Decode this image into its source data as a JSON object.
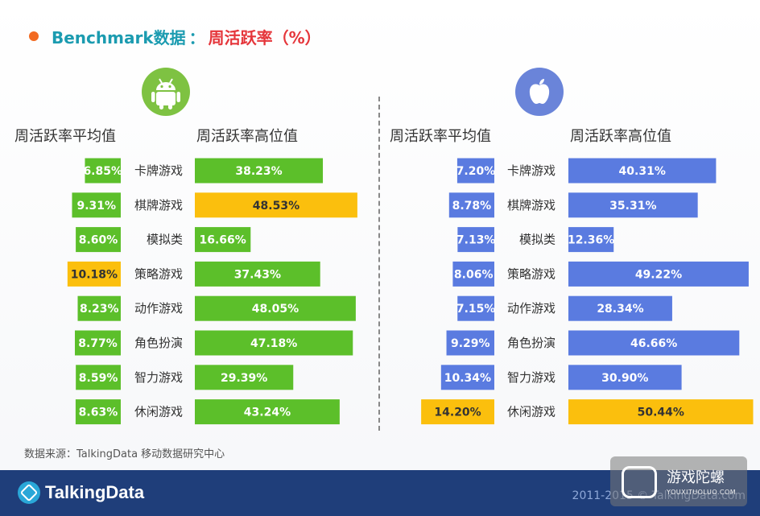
{
  "title": {
    "main": "Benchmark数据",
    "separator": "：",
    "sub": "周活跃率（%）"
  },
  "column_headers": {
    "left_avg": "周活跃率平均值",
    "left_high": "周活跃率高位值",
    "right_avg": "周活跃率平均值",
    "right_high": "周活跃率高位值"
  },
  "source": "数据来源：TalkingData 移动数据研究中心",
  "footer": {
    "brand": "TalkingData",
    "copyright": "2011-2015 © TalkingData.com"
  },
  "watermark": {
    "name": "游戏陀螺",
    "url": "YOUXITUOLUO.COM"
  },
  "icons": {
    "android": "android-icon",
    "apple": "apple-icon"
  },
  "colors": {
    "android_bar": "#5cbf2a",
    "ios_bar": "#5a7be0",
    "highlight": "#fbbf0d",
    "title": "#1b9bb0",
    "accent": "#e5363b"
  },
  "chart_data": [
    {
      "type": "bar",
      "platform": "Android",
      "categories": [
        "卡牌游戏",
        "棋牌游戏",
        "模拟类",
        "策略游戏",
        "动作游戏",
        "角色扮演",
        "智力游戏",
        "休闲游戏"
      ],
      "series": [
        {
          "name": "周活跃率平均值",
          "values": [
            6.85,
            9.31,
            8.6,
            10.18,
            8.23,
            8.77,
            8.59,
            8.63
          ],
          "labels": [
            "6.85%",
            "9.31%",
            "8.60%",
            "10.18%",
            "8.23%",
            "8.77%",
            "8.59%",
            "8.63%"
          ],
          "highlight_index": 3
        },
        {
          "name": "周活跃率高位值",
          "values": [
            38.23,
            48.53,
            16.66,
            37.43,
            48.05,
            47.18,
            29.39,
            43.24
          ],
          "labels": [
            "38.23%",
            "48.53%",
            "16.66%",
            "37.43%",
            "48.05%",
            "47.18%",
            "29.39%",
            "43.24%"
          ],
          "highlight_index": 1
        }
      ]
    },
    {
      "type": "bar",
      "platform": "iOS",
      "categories": [
        "卡牌游戏",
        "棋牌游戏",
        "模拟类",
        "策略游戏",
        "动作游戏",
        "角色扮演",
        "智力游戏",
        "休闲游戏"
      ],
      "series": [
        {
          "name": "周活跃率平均值",
          "values": [
            7.2,
            8.78,
            7.13,
            8.06,
            7.15,
            9.29,
            10.34,
            14.2
          ],
          "labels": [
            "7.20%",
            "8.78%",
            "7.13%",
            "8.06%",
            "7.15%",
            "9.29%",
            "10.34%",
            "14.20%"
          ],
          "highlight_index": 7
        },
        {
          "name": "周活跃率高位值",
          "values": [
            40.31,
            35.31,
            12.36,
            49.22,
            28.34,
            46.66,
            30.9,
            50.44
          ],
          "labels": [
            "40.31%",
            "35.31%",
            "12.36%",
            "49.22%",
            "28.34%",
            "46.66%",
            "30.90%",
            "50.44%"
          ],
          "highlight_index": 7
        }
      ]
    }
  ]
}
